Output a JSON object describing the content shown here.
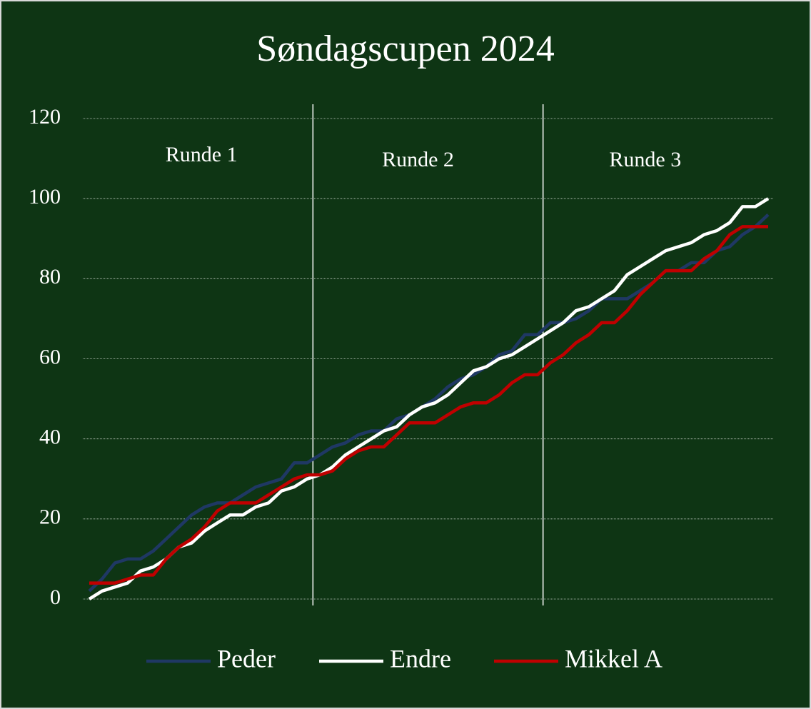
{
  "chart_data": {
    "type": "line",
    "title": "Søndagscupen 2024",
    "annotations": [
      "Runde 1",
      "Runde 2",
      "Runde 3"
    ],
    "categories": [
      null,
      null,
      null,
      null,
      null,
      null,
      null,
      null,
      null,
      null,
      null,
      null,
      null,
      null,
      null,
      null,
      null,
      null,
      null,
      null,
      null,
      null,
      null,
      null,
      null,
      null,
      null,
      null,
      null,
      null,
      null,
      null,
      null,
      null,
      null,
      null,
      null,
      null,
      null,
      null,
      null,
      null,
      null,
      null,
      null,
      null,
      null,
      null,
      null,
      null,
      null,
      null,
      null,
      null
    ],
    "series": [
      {
        "name": "Peder",
        "color": "#1f3864",
        "values": [
          2,
          5,
          9,
          10,
          10,
          12,
          15,
          18,
          21,
          23,
          24,
          24,
          26,
          28,
          29,
          30,
          34,
          34,
          36,
          38,
          39,
          41,
          42,
          42,
          45,
          46,
          48,
          50,
          53,
          55,
          56,
          58,
          61,
          62,
          66,
          66,
          69,
          69,
          70,
          72,
          75,
          75,
          75,
          77,
          79,
          82,
          82,
          84,
          84,
          87,
          88,
          91,
          93,
          96
        ]
      },
      {
        "name": "Endre",
        "color": "#ffffff",
        "values": [
          0,
          2,
          3,
          4,
          7,
          8,
          10,
          13,
          14,
          17,
          19,
          21,
          21,
          23,
          24,
          27,
          28,
          30,
          31,
          33,
          36,
          38,
          40,
          42,
          43,
          46,
          48,
          49,
          51,
          54,
          57,
          58,
          60,
          61,
          63,
          65,
          67,
          69,
          72,
          73,
          75,
          77,
          81,
          83,
          85,
          87,
          88,
          89,
          91,
          92,
          94,
          98,
          98,
          100
        ]
      },
      {
        "name": "Mikkel A",
        "color": "#c00000",
        "values": [
          4,
          4,
          4,
          5,
          6,
          6,
          10,
          13,
          15,
          18,
          22,
          24,
          24,
          24,
          26,
          28,
          30,
          31,
          31,
          32,
          35,
          37,
          38,
          38,
          41,
          44,
          44,
          44,
          46,
          48,
          49,
          49,
          51,
          54,
          56,
          56,
          59,
          61,
          64,
          66,
          69,
          69,
          72,
          76,
          79,
          82,
          82,
          82,
          85,
          87,
          91,
          93,
          93,
          93
        ]
      }
    ],
    "ylim": [
      0,
      120
    ],
    "yticks": [
      0,
      20,
      40,
      60,
      80,
      100,
      120
    ],
    "grid": true,
    "legend": "bottom"
  }
}
